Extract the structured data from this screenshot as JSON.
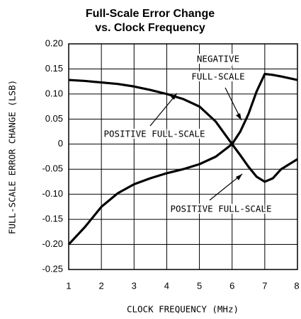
{
  "chart_data": {
    "type": "line",
    "title": [
      "Full-Scale Error Change",
      "vs. Clock Frequency"
    ],
    "x_label": "CLOCK FREQUENCY (MHz)",
    "y_label": "FULL-SCALE ERROR CHANGE (LSB)",
    "x": [
      1,
      1.5,
      2,
      2.5,
      3,
      3.5,
      4,
      4.5,
      5,
      5.5,
      6,
      6.25,
      6.5,
      6.75,
      7,
      7.25,
      7.5,
      8
    ],
    "series": [
      {
        "color": "#000000",
        "values": [
          0.128,
          0.126,
          0.123,
          0.12,
          0.115,
          0.108,
          0.1,
          0.09,
          0.075,
          0.045,
          0,
          -0.022,
          -0.045,
          -0.065,
          -0.075,
          -0.068,
          -0.05,
          -0.03
        ]
      },
      {
        "color": "#000000",
        "values": [
          -0.2,
          -0.165,
          -0.125,
          -0.098,
          -0.08,
          -0.068,
          -0.058,
          -0.05,
          -0.04,
          -0.025,
          0,
          0.025,
          0.06,
          0.105,
          0.14,
          0.138,
          0.135,
          0.128
        ]
      }
    ],
    "annotations": [
      [
        "NEGATIVE",
        "FULL-SCALE"
      ],
      [
        "POSITIVE FULL-SCALE"
      ],
      [
        "POSITIVE FULL-SCALE"
      ]
    ],
    "xlim": [
      1,
      8
    ],
    "xticks": [
      1,
      2,
      3,
      4,
      5,
      6,
      7,
      8
    ],
    "ylim": [
      -0.25,
      0.2
    ],
    "yticks": [
      {
        "value": -0.25,
        "label": "-0.25"
      },
      {
        "value": -0.2,
        "label": "-0.20"
      },
      {
        "value": -0.15,
        "label": "-0.15"
      },
      {
        "value": -0.1,
        "label": "-0.10"
      },
      {
        "value": -0.05,
        "label": "-0.05"
      },
      0,
      {
        "value": 0.05,
        "label": "0.05"
      },
      {
        "value": 0.1,
        "label": "0.10"
      },
      {
        "value": 0.15,
        "label": "0.15"
      },
      {
        "value": 0.2,
        "label": "0.20"
      }
    ],
    "grid": true
  }
}
